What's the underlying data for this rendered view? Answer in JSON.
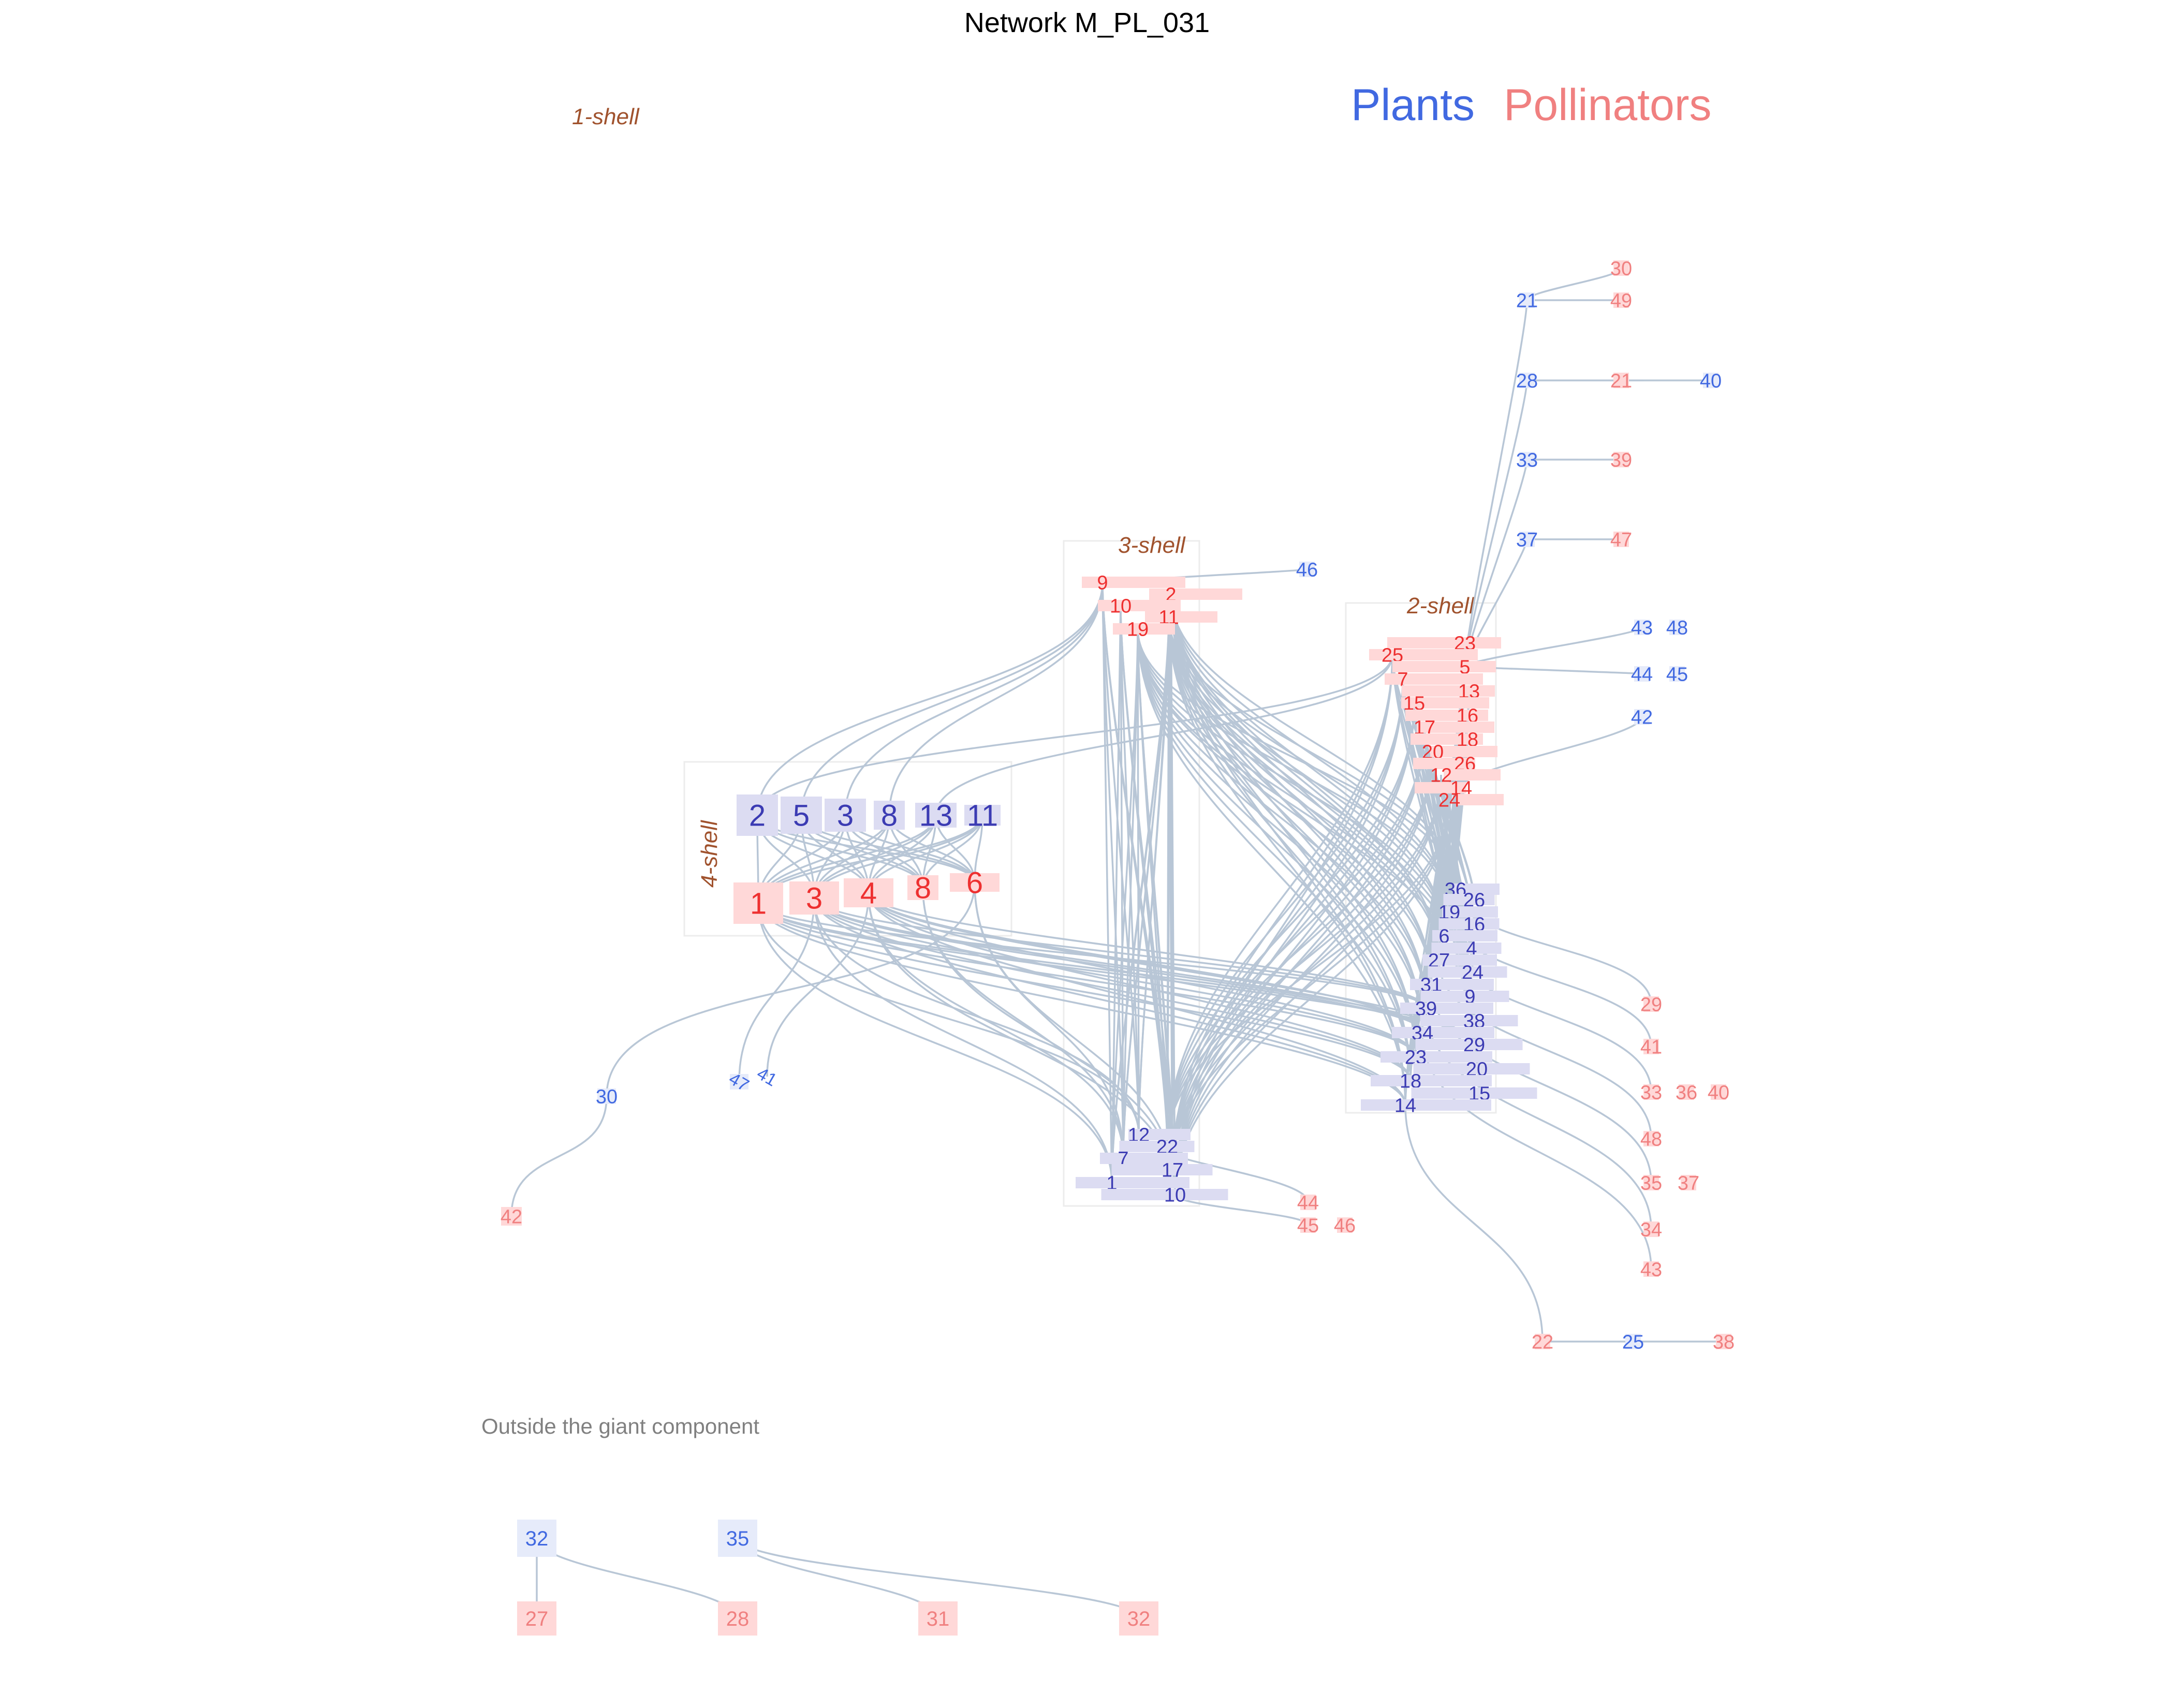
{
  "title": "Network M_PL_031",
  "legend": {
    "plants": "Plants",
    "pollinators": "Pollinators"
  },
  "colors": {
    "plant": "#4169e1",
    "plant_core": "#3b3bb3",
    "pollinator": "#f08080",
    "pollinator_core": "#ee3030",
    "plant_box": "#dcdcf2",
    "plant_box_light": "#e6ebfa",
    "pollinator_box": "#ffd8d8",
    "link": "#b5c4d4",
    "shell_label": "#a0522d",
    "section_label": "#808080"
  },
  "shells": {
    "shell1": "1-shell",
    "shell2": "2-shell",
    "shell3": "3-shell",
    "shell4": "4-shell"
  },
  "outside_label": "Outside the giant component",
  "nodes": {
    "core4_plants": [
      "2",
      "5",
      "3",
      "8",
      "13",
      "11"
    ],
    "core4_pollinators": [
      "1",
      "3",
      "4",
      "8",
      "6"
    ],
    "shell3_pollinators": [
      "9",
      "2",
      "10",
      "11",
      "19"
    ],
    "shell3_plants": [
      "12",
      "22",
      "7",
      "17",
      "1",
      "10"
    ],
    "shell2_pollinators": [
      "23",
      "25",
      "5",
      "7",
      "13",
      "15",
      "16",
      "17",
      "18",
      "20",
      "26",
      "12",
      "14",
      "24"
    ],
    "shell2_plants": [
      "36",
      "26",
      "19",
      "16",
      "6",
      "4",
      "27",
      "24",
      "31",
      "9",
      "39",
      "38",
      "34",
      "29",
      "23",
      "20",
      "18",
      "15",
      "14"
    ],
    "left_plants": [
      "30",
      "47",
      "41"
    ],
    "left_pollinators": [
      "42"
    ],
    "right_plants_top": [
      "21",
      "28",
      "33",
      "37",
      "40"
    ],
    "right_pollinators_top": [
      "30",
      "49",
      "21",
      "39",
      "47"
    ],
    "right_plants_mid": [
      "46",
      "43",
      "48",
      "44",
      "45",
      "42"
    ],
    "right_pollinators_mid": [
      "29",
      "41",
      "33",
      "36",
      "40",
      "48",
      "35",
      "37",
      "34",
      "43"
    ],
    "bottom_chain": [
      "22",
      "25",
      "38"
    ],
    "shell3_extra_pollinators": [
      "44",
      "45",
      "46"
    ],
    "outside_plants": [
      "32",
      "35"
    ],
    "outside_pollinators": [
      "27",
      "28",
      "31",
      "32"
    ]
  }
}
